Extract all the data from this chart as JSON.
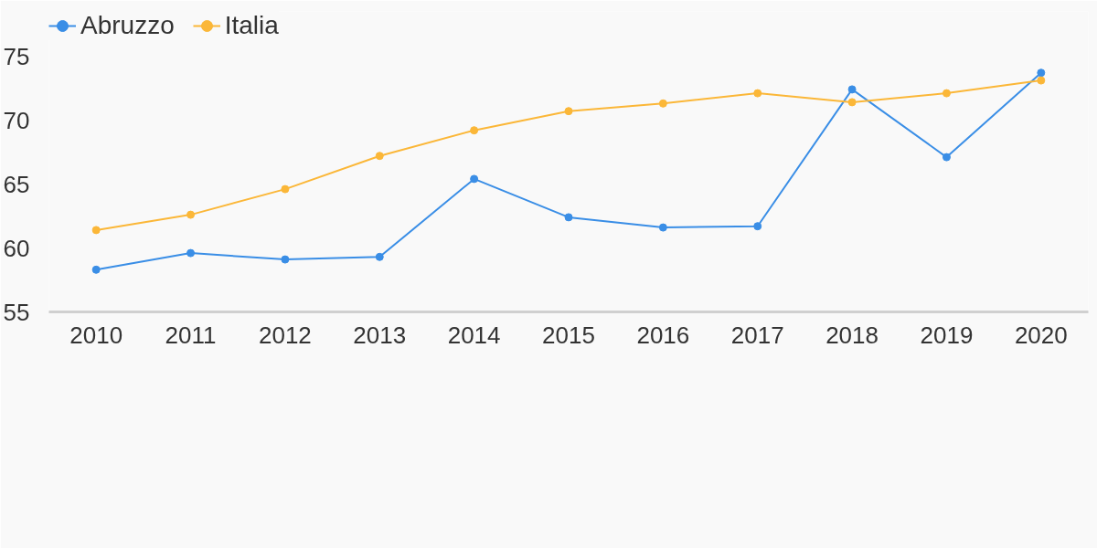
{
  "chart_data": {
    "type": "line",
    "x": [
      2010,
      2011,
      2012,
      2013,
      2014,
      2015,
      2016,
      2017,
      2018,
      2019,
      2020
    ],
    "series": [
      {
        "name": "Abruzzo",
        "color": "#3a8ee6",
        "values": [
          58.3,
          59.6,
          59.1,
          59.3,
          65.4,
          62.4,
          61.6,
          61.7,
          72.4,
          67.1,
          73.7
        ]
      },
      {
        "name": "Italia",
        "color": "#fbb738",
        "values": [
          61.4,
          62.6,
          64.6,
          67.2,
          69.2,
          70.7,
          71.3,
          72.1,
          71.4,
          72.1,
          73.1
        ]
      }
    ],
    "xlim": [
      2009.5,
      2020.5
    ],
    "xticks": [
      2010,
      2011,
      2012,
      2013,
      2014,
      2015,
      2016,
      2017,
      2018,
      2019,
      2020
    ],
    "ylim": [
      55,
      78.5
    ],
    "yticks": [
      55,
      60,
      65,
      70,
      75
    ],
    "marker": "circle",
    "legend": "top left"
  }
}
